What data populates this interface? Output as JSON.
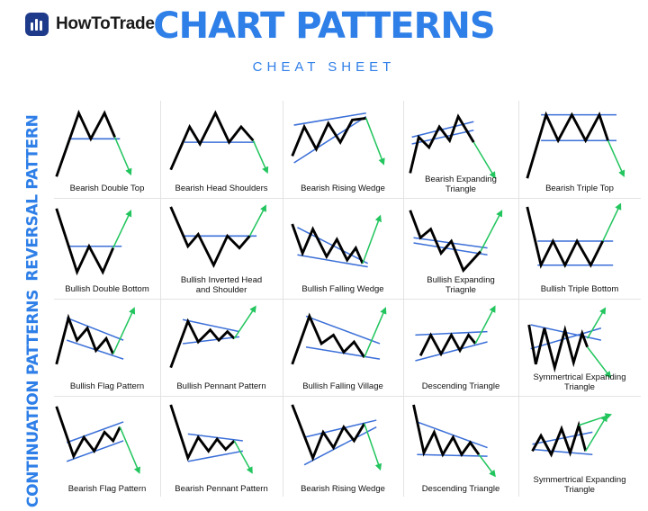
{
  "brand": {
    "name": "HowToTrade",
    "logo_icon": "bar-chart-logo-icon"
  },
  "header": {
    "title": "CHART PATTERNS",
    "subtitle": "CHEAT SHEET"
  },
  "sections": {
    "reversal": "REVERSAL PATTERN",
    "continuation": "CONTINUATION PATTERNS"
  },
  "colors": {
    "accent": "#2f7fe8",
    "line": "#000000",
    "trendline": "#3b6fd8",
    "arrow": "#22c55e"
  },
  "patterns": [
    {
      "label": "Bearish Double Top",
      "pattern": "double-top"
    },
    {
      "label": "Bearish Head Shoulders",
      "pattern": "head-shoulders"
    },
    {
      "label": "Bearish Rising Wedge",
      "pattern": "rising-wedge-down"
    },
    {
      "label": "Bearish Expanding Triangle",
      "pattern": "expanding-down"
    },
    {
      "label": "Bearish Triple Top",
      "pattern": "triple-top"
    },
    {
      "label": "Bullish Double Bottom",
      "pattern": "double-bottom"
    },
    {
      "label": "Bullish Inverted Head and Shoulder",
      "pattern": "inverse-hs"
    },
    {
      "label": "Bullish Falling Wedge",
      "pattern": "falling-wedge-up"
    },
    {
      "label": "Bullish Expanding Triagnle",
      "pattern": "expanding-up"
    },
    {
      "label": "Bullish Triple Bottom",
      "pattern": "triple-bottom"
    },
    {
      "label": "Bullish Flag Pattern",
      "pattern": "bull-flag"
    },
    {
      "label": "Bullish Pennant Pattern",
      "pattern": "bull-pennant"
    },
    {
      "label": "Bullish Falling Village",
      "pattern": "falling-village"
    },
    {
      "label": "Descending Triangle",
      "pattern": "asc-triangle-up"
    },
    {
      "label": "Symmertrical Expanding Triangle",
      "pattern": "sym-expanding-1"
    },
    {
      "label": "Bearish Flag Pattern",
      "pattern": "bear-flag"
    },
    {
      "label": "Bearish Pennant Pattern",
      "pattern": "bear-pennant"
    },
    {
      "label": "Bearish Rising Wedge",
      "pattern": "rising-wedge-cont"
    },
    {
      "label": "Descending Triangle",
      "pattern": "desc-triangle"
    },
    {
      "label": "Symmertrical Expanding Triangle",
      "pattern": "sym-expanding-2"
    }
  ]
}
